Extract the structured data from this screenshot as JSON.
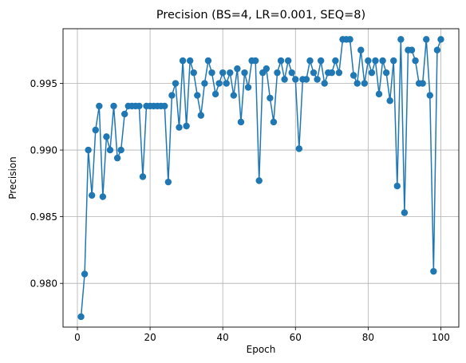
{
  "chart_data": {
    "type": "line",
    "title": "Precision (BS=4, LR=0.001, SEQ=8)",
    "xlabel": "Epoch",
    "ylabel": "Precision",
    "xlim": [
      -3.95,
      104.95
    ],
    "ylim": [
      0.97672,
      0.9991
    ],
    "xticks": [
      0,
      20,
      40,
      60,
      80,
      100
    ],
    "xtick_labels": [
      "0",
      "20",
      "40",
      "60",
      "80",
      "100"
    ],
    "yticks": [
      0.98,
      0.985,
      0.99,
      0.995
    ],
    "ytick_labels": [
      "0.980",
      "0.985",
      "0.990",
      "0.995"
    ],
    "grid": true,
    "marker": "circle",
    "color": "#1f77b4",
    "series": [
      {
        "x": [
          1,
          2,
          3,
          4,
          5,
          6,
          7,
          8,
          9,
          10,
          11,
          12,
          13,
          14,
          15,
          16,
          17,
          18,
          19,
          20,
          21,
          22,
          23,
          24,
          25,
          26,
          27,
          28,
          29,
          30,
          31,
          32,
          33,
          34,
          35,
          36,
          37,
          38,
          39,
          40,
          41,
          42,
          43,
          44,
          45,
          46,
          47,
          48,
          49,
          50,
          51,
          52,
          53,
          54,
          55,
          56,
          57,
          58,
          59,
          60,
          61,
          62,
          63,
          64,
          65,
          66,
          67,
          68,
          69,
          70,
          71,
          72,
          73,
          74,
          75,
          76,
          77,
          78,
          79,
          80,
          81,
          82,
          83,
          84,
          85,
          86,
          87,
          88,
          89,
          90,
          91,
          92,
          93,
          94,
          95,
          96,
          97,
          98,
          99,
          100
        ],
        "values": [
          0.9775,
          0.9807,
          0.99,
          0.9866,
          0.9915,
          0.9933,
          0.9865,
          0.991,
          0.99,
          0.9933,
          0.9894,
          0.99,
          0.9927,
          0.9933,
          0.9933,
          0.9933,
          0.9933,
          0.988,
          0.9933,
          0.9933,
          0.9933,
          0.9933,
          0.9933,
          0.9933,
          0.9876,
          0.9941,
          0.995,
          0.9917,
          0.9967,
          0.9918,
          0.9967,
          0.9958,
          0.9941,
          0.9926,
          0.995,
          0.9967,
          0.9958,
          0.9942,
          0.995,
          0.9958,
          0.995,
          0.9958,
          0.9941,
          0.9961,
          0.9921,
          0.9958,
          0.9947,
          0.9967,
          0.9967,
          0.9877,
          0.9958,
          0.9961,
          0.9939,
          0.9921,
          0.9958,
          0.9967,
          0.9953,
          0.9967,
          0.9958,
          0.9953,
          0.9901,
          0.9953,
          0.9953,
          0.9967,
          0.9958,
          0.9953,
          0.9967,
          0.995,
          0.9958,
          0.9958,
          0.9967,
          0.9958,
          0.9983,
          0.9983,
          0.9983,
          0.9956,
          0.995,
          0.9975,
          0.995,
          0.9967,
          0.9958,
          0.9967,
          0.9942,
          0.9967,
          0.9958,
          0.9937,
          0.9967,
          0.9873,
          0.9983,
          0.9853,
          0.9975,
          0.9975,
          0.9967,
          0.995,
          0.995,
          0.9983,
          0.9941,
          0.9809,
          0.9975,
          0.9983
        ]
      }
    ]
  }
}
